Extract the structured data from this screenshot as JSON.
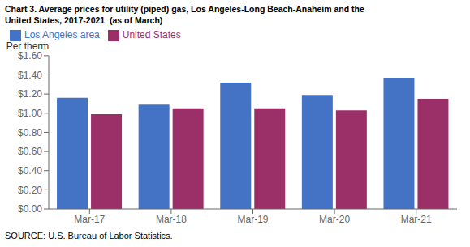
{
  "chart_data": {
    "type": "bar",
    "title": "Chart 3. Average prices for utility (piped) gas, Los Angeles-Long Beach-Anaheim and the\nUnited States, 2017-2021  (as of March)",
    "y_label": "Per therm",
    "source": "SOURCE: U.S. Bureau of Labor Statistics.",
    "categories": [
      "Mar-17",
      "Mar-18",
      "Mar-19",
      "Mar-20",
      "Mar-21"
    ],
    "series": [
      {
        "name": "Los Angeles area",
        "color": "#4472C4",
        "values": [
          1.16,
          1.09,
          1.32,
          1.19,
          1.37
        ]
      },
      {
        "name": "United States",
        "color": "#9B3068",
        "values": [
          0.99,
          1.05,
          1.05,
          1.03,
          1.15
        ]
      }
    ],
    "ylim": [
      0,
      1.6
    ],
    "yticks": [
      {
        "value": 0.0,
        "label": "$0.00"
      },
      {
        "value": 0.2,
        "label": "$0.20"
      },
      {
        "value": 0.4,
        "label": "$0.40"
      },
      {
        "value": 0.6,
        "label": "$0.60"
      },
      {
        "value": 0.8,
        "label": "$0.80"
      },
      {
        "value": 1.0,
        "label": "$1.00"
      },
      {
        "value": 1.2,
        "label": "$1.20"
      },
      {
        "value": 1.4,
        "label": "$1.40"
      },
      {
        "value": 1.6,
        "label": "$1.60"
      }
    ],
    "grid": false,
    "legend": "top-left"
  }
}
